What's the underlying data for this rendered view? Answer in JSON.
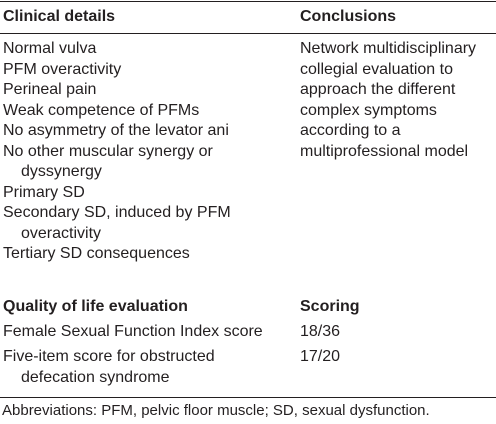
{
  "header": {
    "col1": "Clinical details",
    "col2": "Conclusions"
  },
  "clinical_details": [
    {
      "text": "Normal vulva"
    },
    {
      "text": "PFM overactivity"
    },
    {
      "text": "Perineal pain"
    },
    {
      "text": "Weak competence of PFMs"
    },
    {
      "text": "No asymmetry of the levator ani"
    },
    {
      "text": "No other muscular synergy or",
      "cont": "dyssynergy"
    },
    {
      "text": "Primary SD"
    },
    {
      "text": "Secondary SD, induced by PFM",
      "cont": "overactivity"
    },
    {
      "text": "Tertiary SD consequences"
    }
  ],
  "conclusions_lines": [
    "Network multidisciplinary",
    "collegial evaluation to",
    "approach the different",
    "complex symptoms",
    "according to a",
    "multiprofessional model"
  ],
  "qol": {
    "heading": "Quality of life evaluation",
    "scoring_heading": "Scoring",
    "rows": [
      {
        "label": "Female Sexual Function Index score",
        "score": "18/36"
      },
      {
        "label": "Five-item score for obstructed",
        "label_cont": "defecation syndrome",
        "score": "17/20"
      }
    ]
  },
  "footnote": "Abbreviations: PFM, pelvic floor muscle; SD, sexual dysfunction."
}
